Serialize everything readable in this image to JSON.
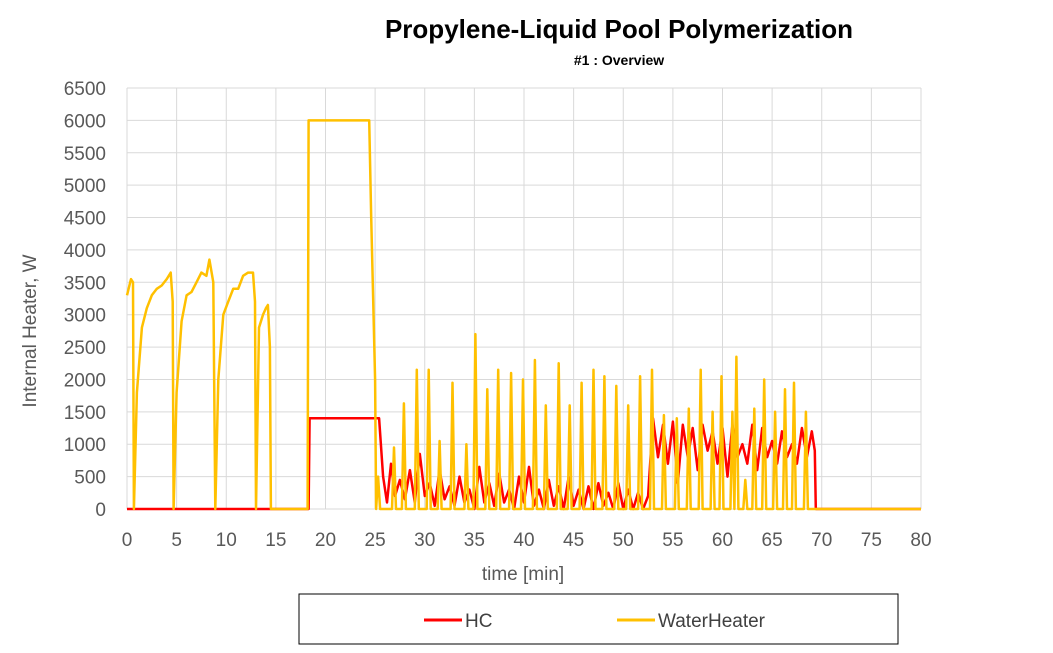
{
  "chart_data": {
    "type": "line",
    "title": "Propylene-Liquid Pool Polymerization",
    "subtitle": "#1 : Overview",
    "xlabel": "time [min]",
    "ylabel": "Internal Heater, W",
    "xlim": [
      0,
      80
    ],
    "ylim": [
      0,
      6500
    ],
    "xticks": [
      0,
      5,
      10,
      15,
      20,
      25,
      30,
      35,
      40,
      45,
      50,
      55,
      60,
      65,
      70,
      75,
      80
    ],
    "yticks": [
      0,
      500,
      1000,
      1500,
      2000,
      2500,
      3000,
      3500,
      4000,
      4500,
      5000,
      5500,
      6000,
      6500
    ],
    "grid": true,
    "legend_position": "bottom",
    "series": [
      {
        "name": "HC",
        "color": "#ff0000",
        "points": [
          [
            0,
            0
          ],
          [
            18.3,
            0
          ],
          [
            18.4,
            1400
          ],
          [
            25.4,
            1400
          ],
          [
            25.8,
            500
          ],
          [
            26.2,
            100
          ],
          [
            26.6,
            700
          ],
          [
            27,
            200
          ],
          [
            27.5,
            450
          ],
          [
            28,
            150
          ],
          [
            28.5,
            600
          ],
          [
            29,
            100
          ],
          [
            29.5,
            850
          ],
          [
            30,
            200
          ],
          [
            30.5,
            400
          ],
          [
            31,
            50
          ],
          [
            31.5,
            600
          ],
          [
            32,
            150
          ],
          [
            32.5,
            350
          ],
          [
            33,
            50
          ],
          [
            33.5,
            500
          ],
          [
            34,
            100
          ],
          [
            34.5,
            300
          ],
          [
            35,
            0
          ],
          [
            35.5,
            650
          ],
          [
            36,
            100
          ],
          [
            36.5,
            400
          ],
          [
            37,
            50
          ],
          [
            37.5,
            550
          ],
          [
            38,
            100
          ],
          [
            38.5,
            300
          ],
          [
            39,
            0
          ],
          [
            39.5,
            500
          ],
          [
            40,
            100
          ],
          [
            40.5,
            650
          ],
          [
            41,
            50
          ],
          [
            41.5,
            300
          ],
          [
            42,
            0
          ],
          [
            42.5,
            450
          ],
          [
            43,
            50
          ],
          [
            43.5,
            350
          ],
          [
            44,
            0
          ],
          [
            44.5,
            500
          ],
          [
            45,
            50
          ],
          [
            45.5,
            300
          ],
          [
            46,
            0
          ],
          [
            46.5,
            350
          ],
          [
            47,
            0
          ],
          [
            47.5,
            400
          ],
          [
            48,
            50
          ],
          [
            48.5,
            250
          ],
          [
            49,
            0
          ],
          [
            49.5,
            400
          ],
          [
            50,
            0
          ],
          [
            50.5,
            300
          ],
          [
            51,
            0
          ],
          [
            51.5,
            250
          ],
          [
            52,
            0
          ],
          [
            52.5,
            200
          ],
          [
            53,
            1400
          ],
          [
            53.5,
            800
          ],
          [
            54,
            1300
          ],
          [
            54.5,
            700
          ],
          [
            55,
            1350
          ],
          [
            55.5,
            400
          ],
          [
            56,
            1300
          ],
          [
            56.5,
            800
          ],
          [
            57,
            1250
          ],
          [
            57.5,
            600
          ],
          [
            58,
            1300
          ],
          [
            58.5,
            900
          ],
          [
            59,
            1200
          ],
          [
            59.5,
            700
          ],
          [
            60,
            1250
          ],
          [
            60.5,
            500
          ],
          [
            61,
            1300
          ],
          [
            61.5,
            800
          ],
          [
            62,
            1000
          ],
          [
            62.5,
            700
          ],
          [
            63,
            1300
          ],
          [
            63.5,
            600
          ],
          [
            64,
            1250
          ],
          [
            64.5,
            800
          ],
          [
            65,
            1050
          ],
          [
            65.5,
            700
          ],
          [
            66,
            1200
          ],
          [
            66.5,
            800
          ],
          [
            67,
            1000
          ],
          [
            67.5,
            700
          ],
          [
            68,
            1250
          ],
          [
            68.5,
            800
          ],
          [
            69,
            1200
          ],
          [
            69.3,
            900
          ],
          [
            69.4,
            0
          ],
          [
            80,
            0
          ]
        ]
      },
      {
        "name": "WaterHeater",
        "color": "#ffc000",
        "points": [
          [
            0,
            3300
          ],
          [
            0.4,
            3550
          ],
          [
            0.6,
            3500
          ],
          [
            0.7,
            0
          ],
          [
            1.0,
            1800
          ],
          [
            1.5,
            2800
          ],
          [
            2.0,
            3100
          ],
          [
            2.5,
            3300
          ],
          [
            3.0,
            3400
          ],
          [
            3.5,
            3450
          ],
          [
            4.0,
            3550
          ],
          [
            4.4,
            3650
          ],
          [
            4.6,
            3200
          ],
          [
            4.7,
            0
          ],
          [
            5.0,
            1800
          ],
          [
            5.5,
            2900
          ],
          [
            6.0,
            3300
          ],
          [
            6.5,
            3350
          ],
          [
            7.0,
            3500
          ],
          [
            7.5,
            3650
          ],
          [
            8.0,
            3600
          ],
          [
            8.3,
            3850
          ],
          [
            8.7,
            3500
          ],
          [
            8.9,
            0
          ],
          [
            9.2,
            2000
          ],
          [
            9.7,
            3000
          ],
          [
            10.2,
            3200
          ],
          [
            10.7,
            3400
          ],
          [
            11.2,
            3400
          ],
          [
            11.7,
            3600
          ],
          [
            12.2,
            3650
          ],
          [
            12.7,
            3650
          ],
          [
            12.9,
            3200
          ],
          [
            13.0,
            0
          ],
          [
            13.3,
            2800
          ],
          [
            13.7,
            3000
          ],
          [
            14.0,
            3100
          ],
          [
            14.2,
            3150
          ],
          [
            14.4,
            2500
          ],
          [
            14.5,
            0
          ],
          [
            18.2,
            0
          ],
          [
            18.3,
            6000
          ],
          [
            24.4,
            6000
          ],
          [
            24.6,
            4500
          ],
          [
            25.0,
            2000
          ],
          [
            25.1,
            0
          ],
          [
            25.3,
            500
          ],
          [
            25.5,
            0
          ],
          [
            26.7,
            0
          ],
          [
            26.9,
            950
          ],
          [
            27.1,
            0
          ],
          [
            27.7,
            0
          ],
          [
            27.9,
            1630
          ],
          [
            28.1,
            0
          ],
          [
            29.0,
            0
          ],
          [
            29.2,
            2150
          ],
          [
            29.4,
            0
          ],
          [
            30.2,
            0
          ],
          [
            30.4,
            2150
          ],
          [
            30.6,
            0
          ],
          [
            31.3,
            0
          ],
          [
            31.5,
            1050
          ],
          [
            31.7,
            0
          ],
          [
            32.6,
            0
          ],
          [
            32.8,
            1950
          ],
          [
            33.0,
            0
          ],
          [
            34.0,
            0
          ],
          [
            34.2,
            1000
          ],
          [
            34.4,
            0
          ],
          [
            34.9,
            0
          ],
          [
            35.1,
            2700
          ],
          [
            35.3,
            0
          ],
          [
            36.1,
            0
          ],
          [
            36.3,
            1850
          ],
          [
            36.5,
            0
          ],
          [
            37.2,
            0
          ],
          [
            37.4,
            2150
          ],
          [
            37.6,
            0
          ],
          [
            38.5,
            0
          ],
          [
            38.7,
            2100
          ],
          [
            38.9,
            0
          ],
          [
            39.7,
            0
          ],
          [
            39.9,
            2000
          ],
          [
            40.1,
            0
          ],
          [
            40.9,
            0
          ],
          [
            41.1,
            2300
          ],
          [
            41.3,
            0
          ],
          [
            42.0,
            0
          ],
          [
            42.2,
            1600
          ],
          [
            42.4,
            0
          ],
          [
            43.3,
            0
          ],
          [
            43.5,
            2250
          ],
          [
            43.7,
            0
          ],
          [
            44.4,
            0
          ],
          [
            44.6,
            1600
          ],
          [
            44.8,
            0
          ],
          [
            45.6,
            0
          ],
          [
            45.8,
            1950
          ],
          [
            46.0,
            0
          ],
          [
            46.8,
            0
          ],
          [
            47.0,
            2150
          ],
          [
            47.2,
            0
          ],
          [
            47.9,
            0
          ],
          [
            48.1,
            2050
          ],
          [
            48.3,
            0
          ],
          [
            49.1,
            0
          ],
          [
            49.3,
            1900
          ],
          [
            49.5,
            0
          ],
          [
            50.3,
            0
          ],
          [
            50.5,
            1600
          ],
          [
            50.7,
            0
          ],
          [
            51.5,
            0
          ],
          [
            51.7,
            2050
          ],
          [
            51.9,
            0
          ],
          [
            52.7,
            0
          ],
          [
            52.9,
            2150
          ],
          [
            53.1,
            0
          ],
          [
            53.9,
            0
          ],
          [
            54.1,
            1450
          ],
          [
            54.3,
            0
          ],
          [
            55.2,
            0
          ],
          [
            55.4,
            1400
          ],
          [
            55.6,
            0
          ],
          [
            56.4,
            0
          ],
          [
            56.6,
            1550
          ],
          [
            56.8,
            0
          ],
          [
            57.6,
            0
          ],
          [
            57.8,
            2150
          ],
          [
            58.0,
            0
          ],
          [
            58.8,
            0
          ],
          [
            59.0,
            1500
          ],
          [
            59.2,
            0
          ],
          [
            59.7,
            0
          ],
          [
            59.9,
            2050
          ],
          [
            60.1,
            0
          ],
          [
            60.8,
            0
          ],
          [
            61.0,
            1500
          ],
          [
            61.2,
            0
          ],
          [
            61.2,
            0
          ],
          [
            61.4,
            2350
          ],
          [
            61.6,
            0
          ],
          [
            62.1,
            0
          ],
          [
            62.3,
            450
          ],
          [
            62.5,
            0
          ],
          [
            63.0,
            0
          ],
          [
            63.2,
            1550
          ],
          [
            63.4,
            0
          ],
          [
            64.0,
            0
          ],
          [
            64.2,
            2000
          ],
          [
            64.4,
            0
          ],
          [
            65.1,
            0
          ],
          [
            65.3,
            1500
          ],
          [
            65.5,
            0
          ],
          [
            66.1,
            0
          ],
          [
            66.3,
            1850
          ],
          [
            66.5,
            0
          ],
          [
            67.0,
            0
          ],
          [
            67.2,
            1950
          ],
          [
            67.4,
            0
          ],
          [
            68.2,
            0
          ],
          [
            68.4,
            1500
          ],
          [
            68.6,
            0
          ],
          [
            69.4,
            0
          ],
          [
            80,
            0
          ]
        ]
      }
    ]
  }
}
